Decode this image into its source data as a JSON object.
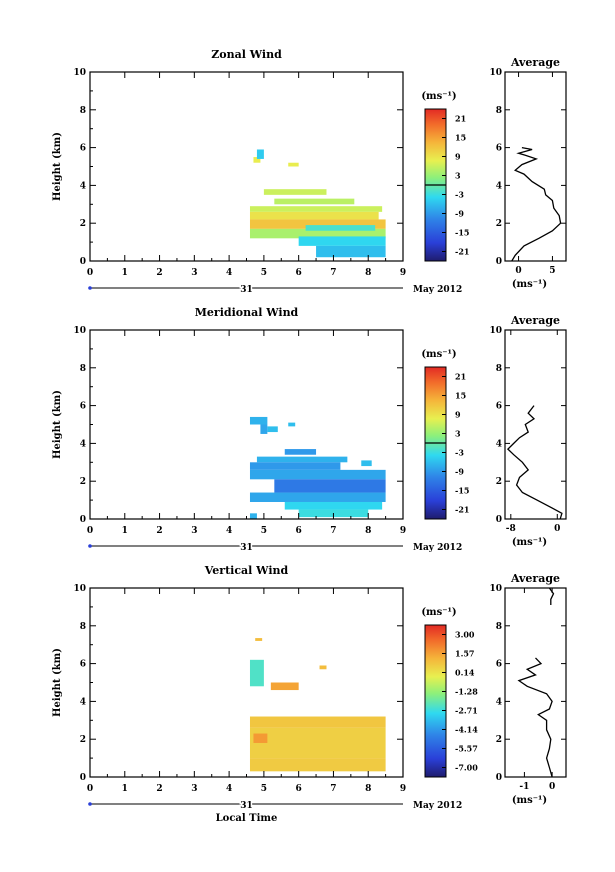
{
  "chart_data": [
    {
      "type": "heatmap",
      "title": "Zonal Wind",
      "ylabel": "Height (km)",
      "xlim": [
        0,
        9
      ],
      "ylim": [
        0,
        10
      ],
      "x_ticks": [
        "0",
        "1",
        "2",
        "3",
        "4",
        "5",
        "6",
        "7",
        "8",
        "9"
      ],
      "y_ticks": [
        "0",
        "2",
        "4",
        "6",
        "8",
        "10"
      ],
      "date_day": "31",
      "date_month": "May 2012",
      "unit": "(ms⁻¹)",
      "colorbar_ticks": [
        "21",
        "15",
        "9",
        "3",
        "-3",
        "-9",
        "-15",
        "-21"
      ],
      "colorbar_range": [
        -24,
        24
      ],
      "cells": [
        {
          "x0": 4.7,
          "x1": 4.9,
          "y0": 5.2,
          "y1": 5.5,
          "v": 8
        },
        {
          "x0": 4.8,
          "x1": 5.0,
          "y0": 5.4,
          "y1": 5.9,
          "v": -5
        },
        {
          "x0": 5.7,
          "x1": 6.0,
          "y0": 5.0,
          "y1": 5.2,
          "v": 8
        },
        {
          "x0": 5.0,
          "x1": 6.8,
          "y0": 3.5,
          "y1": 3.8,
          "v": 6
        },
        {
          "x0": 5.3,
          "x1": 7.6,
          "y0": 3.0,
          "y1": 3.3,
          "v": 5
        },
        {
          "x0": 4.6,
          "x1": 8.4,
          "y0": 2.6,
          "y1": 2.9,
          "v": 6
        },
        {
          "x0": 4.6,
          "x1": 8.3,
          "y0": 2.2,
          "y1": 2.6,
          "v": 9
        },
        {
          "x0": 4.6,
          "x1": 8.5,
          "y0": 1.7,
          "y1": 2.2,
          "v": 12
        },
        {
          "x0": 4.6,
          "x1": 8.5,
          "y0": 1.2,
          "y1": 1.7,
          "v": 4
        },
        {
          "x0": 6.2,
          "x1": 8.2,
          "y0": 1.6,
          "y1": 1.9,
          "v": -2
        },
        {
          "x0": 6.0,
          "x1": 8.5,
          "y0": 0.8,
          "y1": 1.3,
          "v": -4
        },
        {
          "x0": 6.5,
          "x1": 8.5,
          "y0": 0.2,
          "y1": 0.8,
          "v": -6
        }
      ],
      "average_title": "Average",
      "average_xlim": [
        -2,
        7
      ],
      "average_xticks": [
        "0",
        "5"
      ],
      "average_xlabel": "(ms⁻¹)",
      "average_profile": [
        {
          "x": -1.0,
          "y": 0.0
        },
        {
          "x": -0.5,
          "y": 0.3
        },
        {
          "x": 0.8,
          "y": 0.8
        },
        {
          "x": 3.0,
          "y": 1.2
        },
        {
          "x": 5.0,
          "y": 1.6
        },
        {
          "x": 6.2,
          "y": 2.0
        },
        {
          "x": 6.0,
          "y": 2.4
        },
        {
          "x": 5.2,
          "y": 2.8
        },
        {
          "x": 5.0,
          "y": 3.2
        },
        {
          "x": 4.0,
          "y": 3.5
        },
        {
          "x": 3.8,
          "y": 3.8
        },
        {
          "x": 2.0,
          "y": 4.2
        },
        {
          "x": 0.8,
          "y": 4.6
        },
        {
          "x": -0.5,
          "y": 4.8
        },
        {
          "x": 0.5,
          "y": 5.1
        },
        {
          "x": 2.6,
          "y": 5.4
        },
        {
          "x": 1.0,
          "y": 5.6
        },
        {
          "x": 0.0,
          "y": 5.7
        },
        {
          "x": 2.0,
          "y": 5.9
        },
        {
          "x": 0.5,
          "y": 6.0
        }
      ]
    },
    {
      "type": "heatmap",
      "title": "Meridional Wind",
      "ylabel": "Height (km)",
      "xlim": [
        0,
        9
      ],
      "ylim": [
        0,
        10
      ],
      "x_ticks": [
        "0",
        "1",
        "2",
        "3",
        "4",
        "5",
        "6",
        "7",
        "8",
        "9"
      ],
      "y_ticks": [
        "0",
        "2",
        "4",
        "6",
        "8",
        "10"
      ],
      "date_day": "31",
      "date_month": "May 2012",
      "unit": "(ms⁻¹)",
      "colorbar_ticks": [
        "21",
        "15",
        "9",
        "3",
        "-3",
        "-9",
        "-15",
        "-21"
      ],
      "colorbar_range": [
        -24,
        24
      ],
      "cells": [
        {
          "x0": 4.6,
          "x1": 5.1,
          "y0": 5.0,
          "y1": 5.4,
          "v": -7
        },
        {
          "x0": 4.9,
          "x1": 5.1,
          "y0": 4.5,
          "y1": 5.0,
          "v": -8
        },
        {
          "x0": 5.1,
          "x1": 5.4,
          "y0": 4.6,
          "y1": 4.9,
          "v": -6
        },
        {
          "x0": 5.7,
          "x1": 5.9,
          "y0": 4.9,
          "y1": 5.1,
          "v": -6
        },
        {
          "x0": 5.6,
          "x1": 6.5,
          "y0": 3.4,
          "y1": 3.7,
          "v": -9
        },
        {
          "x0": 4.8,
          "x1": 7.4,
          "y0": 3.0,
          "y1": 3.3,
          "v": -7
        },
        {
          "x0": 4.6,
          "x1": 7.2,
          "y0": 2.6,
          "y1": 3.0,
          "v": -9
        },
        {
          "x0": 7.8,
          "x1": 8.1,
          "y0": 2.8,
          "y1": 3.1,
          "v": -6
        },
        {
          "x0": 4.6,
          "x1": 8.5,
          "y0": 2.1,
          "y1": 2.6,
          "v": -8
        },
        {
          "x0": 5.3,
          "x1": 8.5,
          "y0": 1.4,
          "y1": 2.1,
          "v": -12
        },
        {
          "x0": 4.6,
          "x1": 8.5,
          "y0": 0.9,
          "y1": 1.4,
          "v": -8
        },
        {
          "x0": 5.6,
          "x1": 8.4,
          "y0": 0.5,
          "y1": 0.9,
          "v": -4
        },
        {
          "x0": 6.0,
          "x1": 8.0,
          "y0": 0.1,
          "y1": 0.5,
          "v": -3
        },
        {
          "x0": 4.6,
          "x1": 4.8,
          "y0": 0.0,
          "y1": 0.3,
          "v": -7
        }
      ],
      "average_title": "Average",
      "average_xlim": [
        -9,
        1.5
      ],
      "average_xticks": [
        "-8",
        "0"
      ],
      "average_xlabel": "(ms⁻¹)",
      "average_profile": [
        {
          "x": 0.5,
          "y": 0.0
        },
        {
          "x": 0.8,
          "y": 0.3
        },
        {
          "x": -1.0,
          "y": 0.6
        },
        {
          "x": -3.5,
          "y": 1.0
        },
        {
          "x": -6.0,
          "y": 1.4
        },
        {
          "x": -7.0,
          "y": 1.8
        },
        {
          "x": -6.5,
          "y": 2.2
        },
        {
          "x": -5.0,
          "y": 2.6
        },
        {
          "x": -6.0,
          "y": 3.0
        },
        {
          "x": -7.5,
          "y": 3.4
        },
        {
          "x": -8.5,
          "y": 3.7
        },
        {
          "x": -7.5,
          "y": 4.0
        },
        {
          "x": -6.5,
          "y": 4.3
        },
        {
          "x": -5.0,
          "y": 4.6
        },
        {
          "x": -5.5,
          "y": 5.0
        },
        {
          "x": -4.0,
          "y": 5.3
        },
        {
          "x": -5.0,
          "y": 5.6
        },
        {
          "x": -4.0,
          "y": 6.0
        }
      ]
    },
    {
      "type": "heatmap",
      "title": "Vertical Wind",
      "ylabel": "Height (km)",
      "xlabel": "Local Time",
      "xlim": [
        0,
        9
      ],
      "ylim": [
        0,
        10
      ],
      "x_ticks": [
        "0",
        "1",
        "2",
        "3",
        "4",
        "5",
        "6",
        "7",
        "8",
        "9"
      ],
      "y_ticks": [
        "0",
        "2",
        "4",
        "6",
        "8",
        "10"
      ],
      "date_day": "31",
      "date_month": "May 2012",
      "unit": "(ms⁻¹)",
      "colorbar_ticks": [
        "3.00",
        "1.57",
        "0.14",
        "-1.28",
        "-2.71",
        "-4.14",
        "-5.57",
        "-7.00"
      ],
      "colorbar_range": [
        -7.7,
        3.7
      ],
      "cells": [
        {
          "x0": 4.75,
          "x1": 4.95,
          "y0": 7.2,
          "y1": 7.35,
          "v": 1.0
        },
        {
          "x0": 4.6,
          "x1": 5.0,
          "y0": 4.8,
          "y1": 6.2,
          "v": -2.4
        },
        {
          "x0": 5.2,
          "x1": 6.0,
          "y0": 4.6,
          "y1": 5.0,
          "v": 1.5
        },
        {
          "x0": 6.6,
          "x1": 6.8,
          "y0": 5.7,
          "y1": 5.9,
          "v": 1.0
        },
        {
          "x0": 4.6,
          "x1": 8.5,
          "y0": 2.6,
          "y1": 3.2,
          "v": 0.8
        },
        {
          "x0": 4.6,
          "x1": 8.5,
          "y0": 1.0,
          "y1": 2.6,
          "v": 0.6
        },
        {
          "x0": 4.7,
          "x1": 5.1,
          "y0": 1.8,
          "y1": 2.3,
          "v": 1.7
        },
        {
          "x0": 4.6,
          "x1": 8.5,
          "y0": 0.3,
          "y1": 1.0,
          "v": 0.7
        }
      ],
      "average_title": "Average",
      "average_xlim": [
        -1.7,
        0.5
      ],
      "average_xticks": [
        "-1",
        "0"
      ],
      "average_xlabel": "(ms⁻¹)",
      "average_profile": [
        {
          "x": 0.0,
          "y": 0.0
        },
        {
          "x": -0.1,
          "y": 0.5
        },
        {
          "x": -0.2,
          "y": 1.0
        },
        {
          "x": -0.1,
          "y": 1.5
        },
        {
          "x": -0.05,
          "y": 2.0
        },
        {
          "x": -0.2,
          "y": 2.5
        },
        {
          "x": -0.2,
          "y": 3.0
        },
        {
          "x": -0.5,
          "y": 3.3
        },
        {
          "x": -0.1,
          "y": 3.6
        },
        {
          "x": 0.0,
          "y": 4.0
        },
        {
          "x": -0.2,
          "y": 4.4
        },
        {
          "x": -0.9,
          "y": 4.8
        },
        {
          "x": -1.2,
          "y": 5.1
        },
        {
          "x": -0.6,
          "y": 5.4
        },
        {
          "x": -0.9,
          "y": 5.7
        },
        {
          "x": -0.4,
          "y": 6.0
        },
        {
          "x": -0.6,
          "y": 6.3
        }
      ],
      "average_fragment": [
        {
          "x": -0.05,
          "y": 9.1
        },
        {
          "x": -0.05,
          "y": 9.4
        },
        {
          "x": 0.05,
          "y": 9.7
        },
        {
          "x": -0.1,
          "y": 10.0
        }
      ]
    }
  ]
}
